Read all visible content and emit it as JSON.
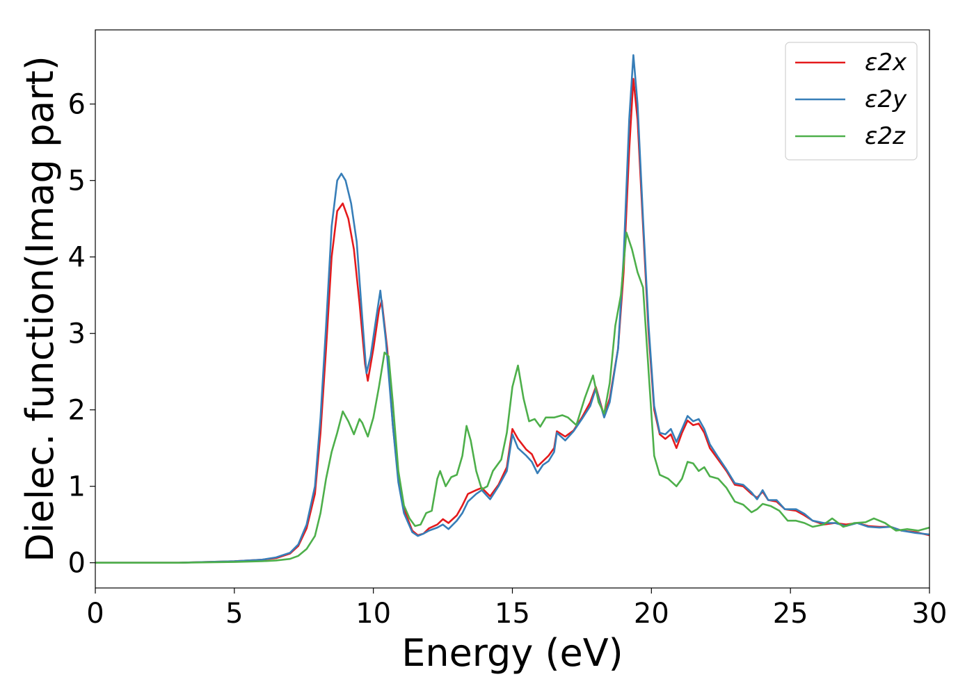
{
  "chart_data": {
    "type": "line",
    "title": "",
    "xlabel": "Energy (eV)",
    "ylabel": "Dielec. function(Imag part)",
    "xlim": [
      0,
      30
    ],
    "ylim": [
      -0.33,
      6.97
    ],
    "xticks": [
      0,
      5,
      10,
      15,
      20,
      25,
      30
    ],
    "yticks": [
      0,
      1,
      2,
      3,
      4,
      5,
      6
    ],
    "grid": false,
    "legend_position": "top-right",
    "series": [
      {
        "name": "ε2x",
        "color": "#e41a1c",
        "points": [
          [
            0,
            0.0
          ],
          [
            3,
            0.0
          ],
          [
            5,
            0.02
          ],
          [
            6,
            0.04
          ],
          [
            6.5,
            0.06
          ],
          [
            7,
            0.12
          ],
          [
            7.3,
            0.22
          ],
          [
            7.6,
            0.45
          ],
          [
            7.9,
            0.9
          ],
          [
            8.1,
            1.7
          ],
          [
            8.3,
            2.8
          ],
          [
            8.5,
            4.0
          ],
          [
            8.7,
            4.6
          ],
          [
            8.9,
            4.7
          ],
          [
            9.1,
            4.5
          ],
          [
            9.3,
            4.1
          ],
          [
            9.5,
            3.4
          ],
          [
            9.7,
            2.6
          ],
          [
            9.8,
            2.38
          ],
          [
            10.0,
            2.8
          ],
          [
            10.2,
            3.3
          ],
          [
            10.3,
            3.43
          ],
          [
            10.5,
            2.8
          ],
          [
            10.7,
            1.8
          ],
          [
            10.9,
            1.1
          ],
          [
            11.1,
            0.7
          ],
          [
            11.4,
            0.42
          ],
          [
            11.6,
            0.36
          ],
          [
            11.8,
            0.38
          ],
          [
            12.0,
            0.45
          ],
          [
            12.3,
            0.5
          ],
          [
            12.5,
            0.57
          ],
          [
            12.7,
            0.52
          ],
          [
            13.0,
            0.62
          ],
          [
            13.2,
            0.75
          ],
          [
            13.4,
            0.9
          ],
          [
            13.7,
            0.95
          ],
          [
            13.9,
            0.98
          ],
          [
            14.2,
            0.87
          ],
          [
            14.5,
            1.02
          ],
          [
            14.8,
            1.25
          ],
          [
            15.0,
            1.75
          ],
          [
            15.2,
            1.62
          ],
          [
            15.5,
            1.48
          ],
          [
            15.7,
            1.42
          ],
          [
            15.9,
            1.26
          ],
          [
            16.1,
            1.33
          ],
          [
            16.3,
            1.4
          ],
          [
            16.5,
            1.5
          ],
          [
            16.6,
            1.72
          ],
          [
            16.9,
            1.65
          ],
          [
            17.2,
            1.73
          ],
          [
            17.5,
            1.9
          ],
          [
            17.8,
            2.1
          ],
          [
            18.0,
            2.3
          ],
          [
            18.3,
            1.92
          ],
          [
            18.5,
            2.15
          ],
          [
            18.8,
            2.8
          ],
          [
            19.0,
            3.8
          ],
          [
            19.2,
            5.4
          ],
          [
            19.35,
            6.33
          ],
          [
            19.5,
            5.8
          ],
          [
            19.7,
            4.4
          ],
          [
            19.9,
            3.0
          ],
          [
            20.1,
            2.0
          ],
          [
            20.3,
            1.68
          ],
          [
            20.5,
            1.62
          ],
          [
            20.7,
            1.68
          ],
          [
            20.9,
            1.5
          ],
          [
            21.1,
            1.7
          ],
          [
            21.3,
            1.86
          ],
          [
            21.5,
            1.8
          ],
          [
            21.7,
            1.82
          ],
          [
            21.9,
            1.7
          ],
          [
            22.1,
            1.5
          ],
          [
            22.4,
            1.35
          ],
          [
            22.7,
            1.2
          ],
          [
            23.0,
            1.02
          ],
          [
            23.3,
            1.0
          ],
          [
            23.6,
            0.9
          ],
          [
            23.8,
            0.85
          ],
          [
            24.0,
            0.93
          ],
          [
            24.2,
            0.82
          ],
          [
            24.5,
            0.8
          ],
          [
            24.8,
            0.7
          ],
          [
            25.2,
            0.68
          ],
          [
            25.5,
            0.62
          ],
          [
            25.8,
            0.55
          ],
          [
            26.2,
            0.5
          ],
          [
            26.6,
            0.52
          ],
          [
            27.0,
            0.5
          ],
          [
            27.4,
            0.52
          ],
          [
            27.8,
            0.48
          ],
          [
            28.2,
            0.47
          ],
          [
            28.6,
            0.47
          ],
          [
            29.0,
            0.42
          ],
          [
            29.5,
            0.4
          ],
          [
            30,
            0.36
          ]
        ]
      },
      {
        "name": "ε2y",
        "color": "#377eb8",
        "points": [
          [
            0,
            0.0
          ],
          [
            3,
            0.0
          ],
          [
            5,
            0.02
          ],
          [
            6,
            0.04
          ],
          [
            6.5,
            0.07
          ],
          [
            7,
            0.13
          ],
          [
            7.3,
            0.24
          ],
          [
            7.6,
            0.5
          ],
          [
            7.9,
            1.0
          ],
          [
            8.1,
            1.9
          ],
          [
            8.3,
            3.1
          ],
          [
            8.5,
            4.4
          ],
          [
            8.7,
            5.0
          ],
          [
            8.85,
            5.09
          ],
          [
            9.0,
            5.0
          ],
          [
            9.2,
            4.7
          ],
          [
            9.4,
            4.2
          ],
          [
            9.6,
            3.2
          ],
          [
            9.75,
            2.48
          ],
          [
            9.9,
            2.7
          ],
          [
            10.1,
            3.2
          ],
          [
            10.25,
            3.56
          ],
          [
            10.45,
            2.9
          ],
          [
            10.7,
            1.8
          ],
          [
            10.9,
            1.05
          ],
          [
            11.1,
            0.65
          ],
          [
            11.4,
            0.4
          ],
          [
            11.6,
            0.35
          ],
          [
            11.8,
            0.38
          ],
          [
            12.0,
            0.42
          ],
          [
            12.3,
            0.46
          ],
          [
            12.5,
            0.5
          ],
          [
            12.7,
            0.44
          ],
          [
            13.0,
            0.55
          ],
          [
            13.2,
            0.65
          ],
          [
            13.4,
            0.8
          ],
          [
            13.7,
            0.9
          ],
          [
            13.9,
            0.95
          ],
          [
            14.2,
            0.83
          ],
          [
            14.5,
            1.0
          ],
          [
            14.8,
            1.2
          ],
          [
            15.0,
            1.68
          ],
          [
            15.2,
            1.5
          ],
          [
            15.5,
            1.4
          ],
          [
            15.7,
            1.32
          ],
          [
            15.9,
            1.17
          ],
          [
            16.1,
            1.28
          ],
          [
            16.3,
            1.33
          ],
          [
            16.5,
            1.45
          ],
          [
            16.6,
            1.7
          ],
          [
            16.9,
            1.6
          ],
          [
            17.2,
            1.72
          ],
          [
            17.5,
            1.88
          ],
          [
            17.8,
            2.05
          ],
          [
            18.0,
            2.28
          ],
          [
            18.3,
            1.9
          ],
          [
            18.5,
            2.1
          ],
          [
            18.8,
            2.8
          ],
          [
            19.0,
            4.0
          ],
          [
            19.2,
            5.8
          ],
          [
            19.35,
            6.64
          ],
          [
            19.5,
            6.0
          ],
          [
            19.7,
            4.5
          ],
          [
            19.9,
            3.1
          ],
          [
            20.1,
            2.05
          ],
          [
            20.3,
            1.7
          ],
          [
            20.5,
            1.68
          ],
          [
            20.7,
            1.75
          ],
          [
            20.9,
            1.58
          ],
          [
            21.1,
            1.75
          ],
          [
            21.3,
            1.92
          ],
          [
            21.5,
            1.85
          ],
          [
            21.7,
            1.88
          ],
          [
            21.9,
            1.75
          ],
          [
            22.1,
            1.55
          ],
          [
            22.4,
            1.38
          ],
          [
            22.7,
            1.22
          ],
          [
            23.0,
            1.04
          ],
          [
            23.3,
            1.02
          ],
          [
            23.6,
            0.92
          ],
          [
            23.8,
            0.83
          ],
          [
            24.0,
            0.95
          ],
          [
            24.2,
            0.82
          ],
          [
            24.5,
            0.82
          ],
          [
            24.8,
            0.7
          ],
          [
            25.2,
            0.7
          ],
          [
            25.5,
            0.64
          ],
          [
            25.8,
            0.55
          ],
          [
            26.2,
            0.52
          ],
          [
            26.6,
            0.52
          ],
          [
            27.0,
            0.48
          ],
          [
            27.4,
            0.52
          ],
          [
            27.8,
            0.47
          ],
          [
            28.2,
            0.46
          ],
          [
            28.6,
            0.47
          ],
          [
            29.0,
            0.42
          ],
          [
            29.5,
            0.39
          ],
          [
            30,
            0.37
          ]
        ]
      },
      {
        "name": "ε2z",
        "color": "#4daf4a",
        "points": [
          [
            0,
            0.0
          ],
          [
            3,
            0.0
          ],
          [
            5,
            0.01
          ],
          [
            6,
            0.02
          ],
          [
            6.5,
            0.03
          ],
          [
            7,
            0.05
          ],
          [
            7.3,
            0.09
          ],
          [
            7.6,
            0.18
          ],
          [
            7.9,
            0.35
          ],
          [
            8.1,
            0.65
          ],
          [
            8.3,
            1.1
          ],
          [
            8.5,
            1.45
          ],
          [
            8.7,
            1.7
          ],
          [
            8.9,
            1.98
          ],
          [
            9.1,
            1.85
          ],
          [
            9.3,
            1.68
          ],
          [
            9.5,
            1.88
          ],
          [
            9.6,
            1.83
          ],
          [
            9.8,
            1.65
          ],
          [
            10.0,
            1.9
          ],
          [
            10.2,
            2.3
          ],
          [
            10.4,
            2.75
          ],
          [
            10.55,
            2.7
          ],
          [
            10.7,
            2.1
          ],
          [
            10.9,
            1.2
          ],
          [
            11.1,
            0.75
          ],
          [
            11.3,
            0.58
          ],
          [
            11.5,
            0.48
          ],
          [
            11.7,
            0.5
          ],
          [
            11.9,
            0.65
          ],
          [
            12.1,
            0.68
          ],
          [
            12.3,
            1.1
          ],
          [
            12.4,
            1.2
          ],
          [
            12.6,
            1.0
          ],
          [
            12.8,
            1.12
          ],
          [
            13.0,
            1.15
          ],
          [
            13.2,
            1.4
          ],
          [
            13.35,
            1.79
          ],
          [
            13.5,
            1.6
          ],
          [
            13.7,
            1.2
          ],
          [
            13.9,
            0.96
          ],
          [
            14.1,
            1.0
          ],
          [
            14.3,
            1.2
          ],
          [
            14.6,
            1.35
          ],
          [
            14.8,
            1.7
          ],
          [
            15.0,
            2.3
          ],
          [
            15.2,
            2.58
          ],
          [
            15.4,
            2.15
          ],
          [
            15.6,
            1.85
          ],
          [
            15.8,
            1.88
          ],
          [
            16.0,
            1.78
          ],
          [
            16.2,
            1.9
          ],
          [
            16.5,
            1.9
          ],
          [
            16.8,
            1.93
          ],
          [
            17.0,
            1.9
          ],
          [
            17.3,
            1.8
          ],
          [
            17.6,
            2.15
          ],
          [
            17.9,
            2.45
          ],
          [
            18.1,
            2.1
          ],
          [
            18.3,
            1.95
          ],
          [
            18.5,
            2.35
          ],
          [
            18.7,
            3.1
          ],
          [
            18.9,
            3.5
          ],
          [
            19.1,
            4.32
          ],
          [
            19.3,
            4.1
          ],
          [
            19.5,
            3.8
          ],
          [
            19.7,
            3.6
          ],
          [
            19.9,
            2.5
          ],
          [
            20.1,
            1.4
          ],
          [
            20.3,
            1.15
          ],
          [
            20.6,
            1.1
          ],
          [
            20.9,
            1.0
          ],
          [
            21.1,
            1.1
          ],
          [
            21.3,
            1.32
          ],
          [
            21.5,
            1.3
          ],
          [
            21.7,
            1.2
          ],
          [
            21.9,
            1.25
          ],
          [
            22.1,
            1.13
          ],
          [
            22.4,
            1.1
          ],
          [
            22.7,
            0.98
          ],
          [
            23.0,
            0.8
          ],
          [
            23.3,
            0.76
          ],
          [
            23.6,
            0.66
          ],
          [
            23.8,
            0.7
          ],
          [
            24.0,
            0.77
          ],
          [
            24.3,
            0.74
          ],
          [
            24.6,
            0.68
          ],
          [
            24.9,
            0.55
          ],
          [
            25.2,
            0.55
          ],
          [
            25.5,
            0.52
          ],
          [
            25.8,
            0.47
          ],
          [
            26.2,
            0.5
          ],
          [
            26.5,
            0.58
          ],
          [
            26.9,
            0.47
          ],
          [
            27.3,
            0.52
          ],
          [
            27.7,
            0.53
          ],
          [
            28.0,
            0.58
          ],
          [
            28.4,
            0.52
          ],
          [
            28.8,
            0.42
          ],
          [
            29.2,
            0.44
          ],
          [
            29.6,
            0.42
          ],
          [
            30,
            0.46
          ]
        ]
      }
    ]
  }
}
